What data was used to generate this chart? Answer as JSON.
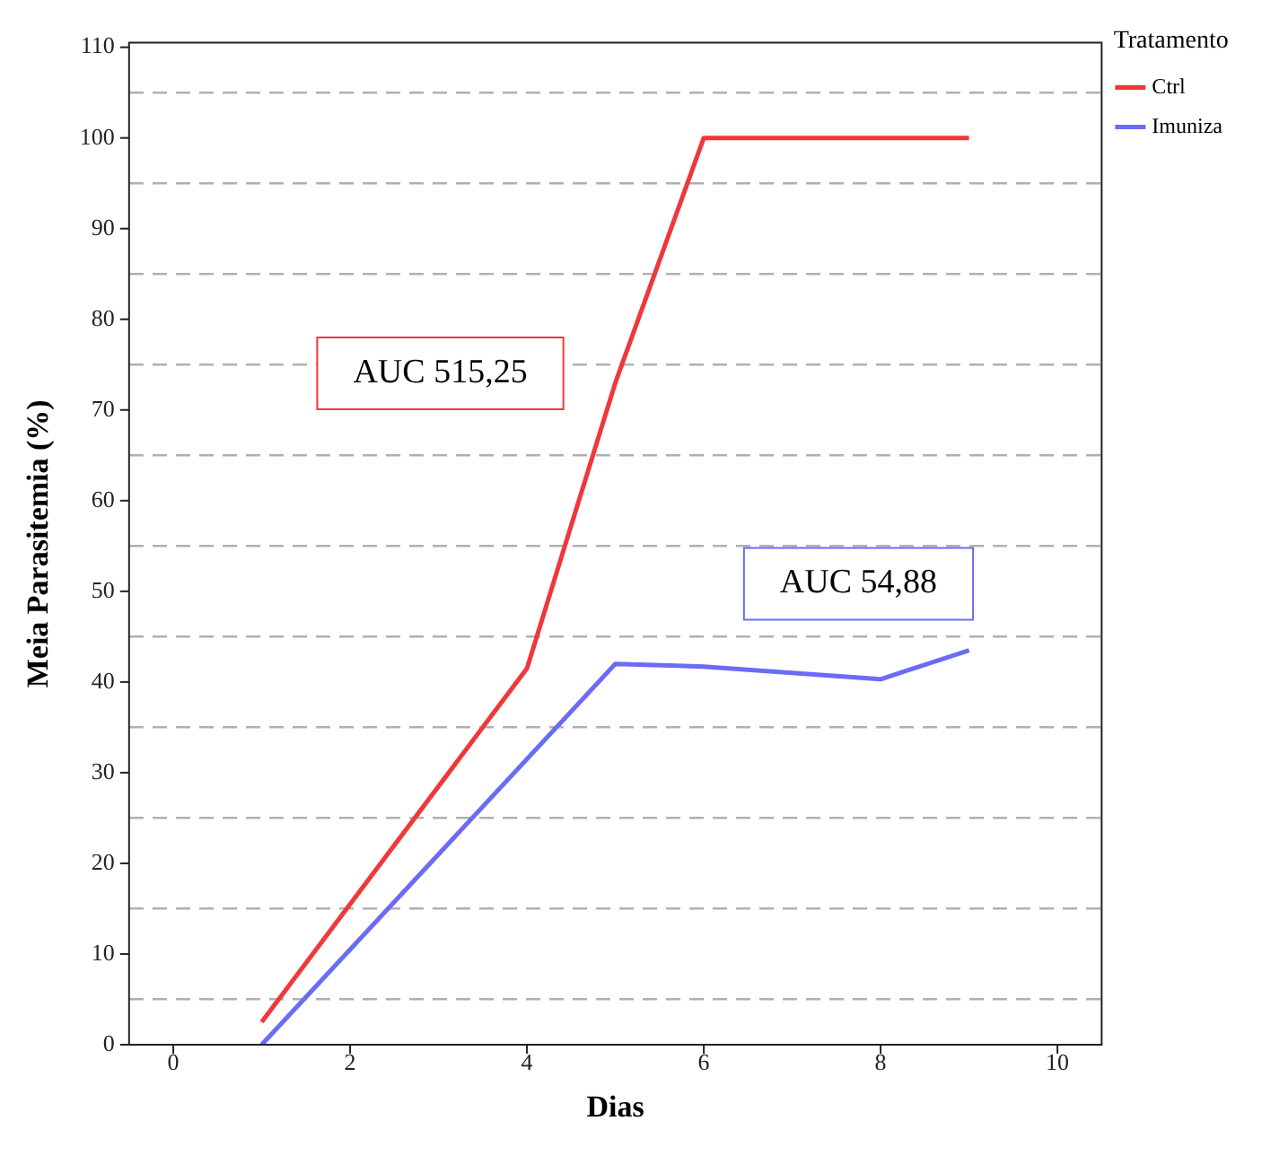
{
  "chart_data": {
    "type": "line",
    "xlabel": "Dias",
    "ylabel": "Meia Parasitemia (%)",
    "legend_title": "Tratamento",
    "legend": "top right",
    "grid": "y",
    "marker": "none",
    "line_style": "solid",
    "xlim": [
      -0.5,
      10.5
    ],
    "xticks": [
      0,
      2,
      4,
      6,
      8,
      10
    ],
    "ylim": [
      0,
      110.5
    ],
    "yticks": [
      0,
      {
        "value": 5,
        "label": null
      },
      10,
      {
        "value": 15,
        "label": null
      },
      20,
      {
        "value": 25,
        "label": null
      },
      30,
      {
        "value": 35,
        "label": null
      },
      40,
      {
        "value": 45,
        "label": null
      },
      50,
      {
        "value": 55,
        "label": null
      },
      60,
      {
        "value": 65,
        "label": null
      },
      70,
      {
        "value": 75,
        "label": null
      },
      80,
      {
        "value": 85,
        "label": null
      },
      90,
      {
        "value": 95,
        "label": null
      },
      100,
      {
        "value": 105,
        "label": null
      },
      110
    ],
    "series": [
      {
        "name": "Ctrl",
        "color": "#f0373c",
        "x": [
          1,
          4,
          5,
          6,
          8,
          9
        ],
        "values": [
          2.5,
          41.5,
          73,
          100,
          100,
          100
        ]
      },
      {
        "name": "Imuniza",
        "color": "#6b6bf7",
        "x": [
          1,
          5,
          6,
          8,
          9
        ],
        "values": [
          0,
          42,
          41.7,
          40.3,
          43.5
        ]
      }
    ],
    "annotations": [
      "AUC 515,25",
      "AUC 54,88"
    ]
  }
}
